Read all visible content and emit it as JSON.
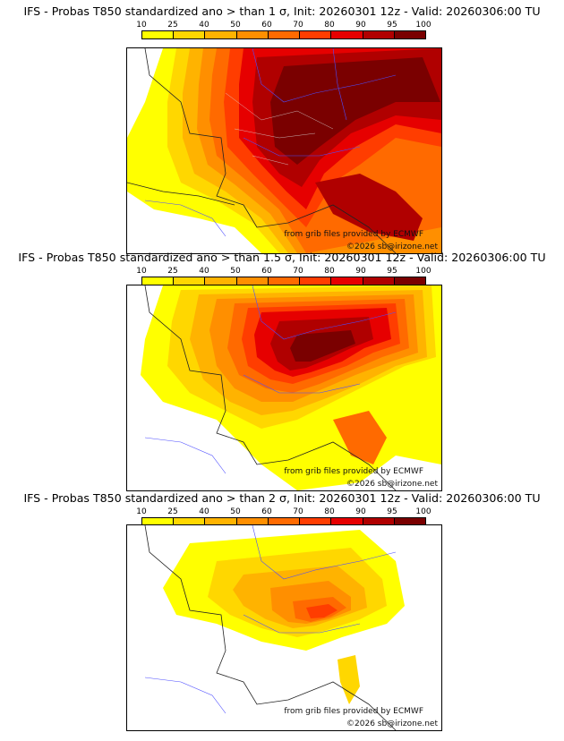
{
  "colorbar": {
    "ticks": [
      "10",
      "25",
      "40",
      "50",
      "60",
      "70",
      "80",
      "90",
      "95",
      "100"
    ],
    "colors": [
      "#ffff00",
      "#ffd700",
      "#ffb300",
      "#ff8f00",
      "#ff6a00",
      "#ff3d00",
      "#e60000",
      "#b00000",
      "#7a0000"
    ]
  },
  "panels": [
    {
      "title": "IFS - Probas T850  standardized ano > than 1 σ, Init: 20260301 12z - Valid: 20260306:00 TU",
      "sigma": "1",
      "credit_source": "from grib files provided by ECMWF",
      "credit_copyright": "©2026 sb@irizone.net"
    },
    {
      "title": "IFS - Probas T850  standardized ano > than 1.5 σ, Init: 20260301 12z - Valid: 20260306:00 TU",
      "sigma": "1.5",
      "credit_source": "from grib files provided by ECMWF",
      "credit_copyright": "©2026 sb@irizone.net"
    },
    {
      "title": "IFS - Probas T850  standardized ano > than 2 σ, Init: 20260301 12z - Valid: 20260306:00 TU",
      "sigma": "2",
      "credit_source": "from grib files provided by ECMWF",
      "credit_copyright": "©2026 sb@irizone.net"
    }
  ]
}
